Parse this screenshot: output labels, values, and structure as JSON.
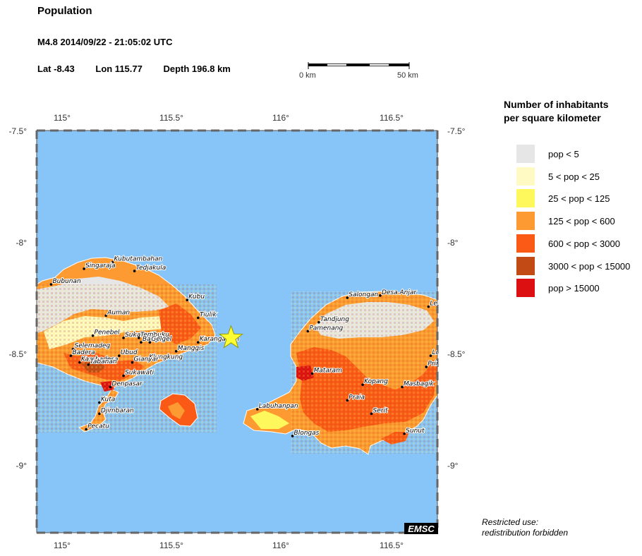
{
  "header": {
    "title": "Population",
    "event": "M4.8  2014/09/22 - 21:05:02 UTC",
    "lat": "Lat -8.43",
    "lon": "Lon 115.77",
    "depth": "Depth 196.8 km"
  },
  "scale": {
    "start": "0 km",
    "end": "50 km"
  },
  "map": {
    "water_color": "#87c5f8",
    "lon_ticks": [
      "115°",
      "115.5°",
      "116°",
      "116.5°"
    ],
    "lat_ticks_left": [
      "-7.5°",
      "-8°",
      "-8.5°",
      "-9°"
    ],
    "lat_ticks_right": [
      "-7.5°",
      "-8°",
      "-8.5°",
      "-9°"
    ],
    "epicenter": {
      "lon": 115.77,
      "lat": -8.43,
      "marker_color": "#ffff33"
    },
    "cities": [
      {
        "name": "Kubutambahan",
        "lon": 115.23,
        "lat": -8.09
      },
      {
        "name": "Singaraja",
        "lon": 115.1,
        "lat": -8.12
      },
      {
        "name": "Tedjakula",
        "lon": 115.33,
        "lat": -8.13
      },
      {
        "name": "Bubunan",
        "lon": 114.95,
        "lat": -8.19
      },
      {
        "name": "Kubu",
        "lon": 115.57,
        "lat": -8.26
      },
      {
        "name": "Auman",
        "lon": 115.2,
        "lat": -8.33
      },
      {
        "name": "Tiulik",
        "lon": 115.62,
        "lat": -8.34
      },
      {
        "name": "Penebel",
        "lon": 115.14,
        "lat": -8.42
      },
      {
        "name": "Sukawati",
        "lon": 115.28,
        "lat": -8.43
      },
      {
        "name": "Tembuku",
        "lon": 115.35,
        "lat": -8.43
      },
      {
        "name": "Bangli",
        "lon": 115.36,
        "lat": -8.45
      },
      {
        "name": "Gelgel",
        "lon": 115.4,
        "lat": -8.45
      },
      {
        "name": "Karangasem",
        "lon": 115.62,
        "lat": -8.45
      },
      {
        "name": "Selemadeg",
        "lon": 115.05,
        "lat": -8.48
      },
      {
        "name": "Manggis",
        "lon": 115.52,
        "lat": -8.49
      },
      {
        "name": "Badera",
        "lon": 115.04,
        "lat": -8.51
      },
      {
        "name": "Ubud",
        "lon": 115.26,
        "lat": -8.51
      },
      {
        "name": "Klungkung",
        "lon": 115.39,
        "lat": -8.53
      },
      {
        "name": "Kambadesa",
        "lon": 115.08,
        "lat": -8.54
      },
      {
        "name": "Tabanan",
        "lon": 115.12,
        "lat": -8.55
      },
      {
        "name": "Gianyar",
        "lon": 115.32,
        "lat": -8.54
      },
      {
        "name": "Sukawati",
        "lon": 115.28,
        "lat": -8.6
      },
      {
        "name": "Denpasar",
        "lon": 115.22,
        "lat": -8.65
      },
      {
        "name": "Kuta",
        "lon": 115.17,
        "lat": -8.72
      },
      {
        "name": "Djimbaran",
        "lon": 115.17,
        "lat": -8.77
      },
      {
        "name": "Pecatu",
        "lon": 115.11,
        "lat": -8.84
      },
      {
        "name": "Salongan",
        "lon": 116.3,
        "lat": -8.25
      },
      {
        "name": "Desa Anjar",
        "lon": 116.45,
        "lat": -8.24
      },
      {
        "name": "Le",
        "lon": 116.67,
        "lat": -8.29
      },
      {
        "name": "Tandjung",
        "lon": 116.17,
        "lat": -8.36
      },
      {
        "name": "Pamenang",
        "lon": 116.12,
        "lat": -8.4
      },
      {
        "name": "Lo",
        "lon": 116.68,
        "lat": -8.51
      },
      {
        "name": "Prin",
        "lon": 116.66,
        "lat": -8.56
      },
      {
        "name": "Mataram",
        "lon": 116.14,
        "lat": -8.59
      },
      {
        "name": "Kopang",
        "lon": 116.37,
        "lat": -8.64
      },
      {
        "name": "Masbagik",
        "lon": 116.55,
        "lat": -8.65
      },
      {
        "name": "Praia",
        "lon": 116.3,
        "lat": -8.71
      },
      {
        "name": "Labuhanpan",
        "lon": 115.89,
        "lat": -8.75
      },
      {
        "name": "Serit",
        "lon": 116.41,
        "lat": -8.77
      },
      {
        "name": "Blongas",
        "lon": 116.05,
        "lat": -8.87
      },
      {
        "name": "Sunut",
        "lon": 116.56,
        "lat": -8.86
      }
    ]
  },
  "legend": {
    "title_line1": "Number of inhabitants",
    "title_line2": "per square kilometer",
    "items": [
      {
        "label": "pop < 5",
        "color": "#e6e6e6"
      },
      {
        "label": "5 < pop < 25",
        "color": "#fff9c4"
      },
      {
        "label": "25 < pop < 125",
        "color": "#fff85c"
      },
      {
        "label": "125 < pop < 600",
        "color": "#fd9a32"
      },
      {
        "label": "600 < pop < 3000",
        "color": "#fb5a16"
      },
      {
        "label": "3000 < pop < 15000",
        "color": "#c24a14"
      },
      {
        "label": "pop > 15000",
        "color": "#dc1010"
      }
    ]
  },
  "badge": "EMSC",
  "restricted": {
    "line1": "Restricted use:",
    "line2": "redistribution forbidden"
  }
}
